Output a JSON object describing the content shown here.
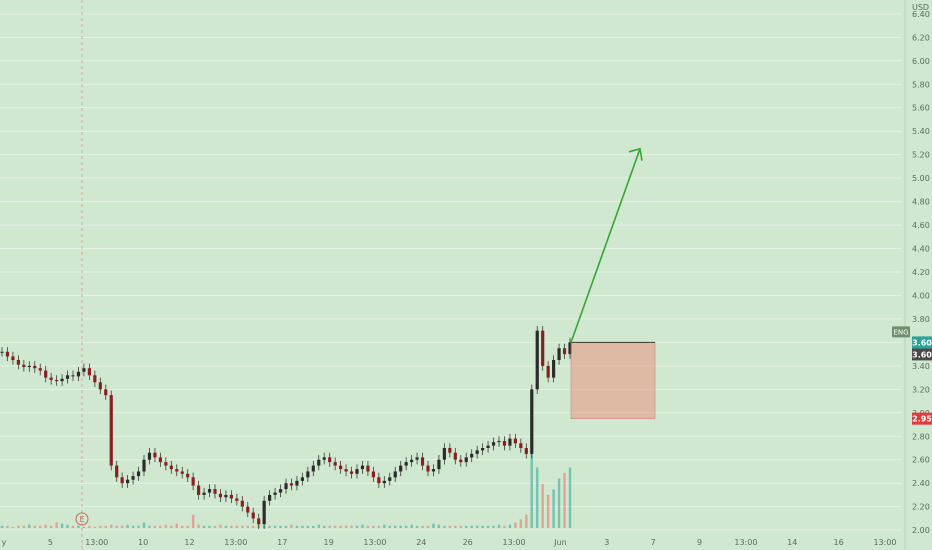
{
  "chart_data": {
    "type": "candlestick",
    "currency": "USD",
    "symbol_badge": "ENG",
    "y_range": [
      1.95,
      6.45
    ],
    "y_ticks": [
      "6.40",
      "6.20",
      "6.00",
      "5.80",
      "5.60",
      "5.40",
      "5.20",
      "5.00",
      "4.80",
      "4.60",
      "4.40",
      "4.20",
      "4.00",
      "3.80",
      "3.60",
      "3.40",
      "3.20",
      "3.00",
      "2.80",
      "2.60",
      "2.40",
      "2.20",
      "2.00"
    ],
    "x_ticks": [
      "y",
      "5",
      "13:00",
      "10",
      "12",
      "13:00",
      "17",
      "19",
      "13:00",
      "24",
      "26",
      "13:00",
      "Jun",
      "3",
      "7",
      "9",
      "13:00",
      "14",
      "16",
      "13:00"
    ],
    "price_labels": [
      {
        "text": "3.60",
        "value": 3.6,
        "color": "#26a69a"
      },
      {
        "text": "3.60",
        "value": 3.6,
        "color": "#4a4a4a"
      },
      {
        "text": "2.95",
        "value": 2.95,
        "color": "#e5383b"
      }
    ],
    "event_marker": "E",
    "price_series": [
      3.52,
      3.48,
      3.45,
      3.41,
      3.39,
      3.4,
      3.38,
      3.36,
      3.3,
      3.28,
      3.27,
      3.29,
      3.32,
      3.31,
      3.35,
      3.38,
      3.32,
      3.26,
      3.2,
      3.15,
      2.55,
      2.45,
      2.4,
      2.43,
      2.46,
      2.5,
      2.6,
      2.66,
      2.62,
      2.58,
      2.55,
      2.52,
      2.5,
      2.48,
      2.45,
      2.38,
      2.3,
      2.32,
      2.35,
      2.31,
      2.28,
      2.3,
      2.27,
      2.25,
      2.2,
      2.15,
      2.1,
      2.05,
      2.25,
      2.3,
      2.32,
      2.35,
      2.4,
      2.38,
      2.42,
      2.45,
      2.5,
      2.55,
      2.6,
      2.62,
      2.58,
      2.55,
      2.52,
      2.5,
      2.48,
      2.52,
      2.55,
      2.5,
      2.45,
      2.4,
      2.42,
      2.45,
      2.5,
      2.55,
      2.58,
      2.6,
      2.62,
      2.55,
      2.5,
      2.52,
      2.6,
      2.7,
      2.66,
      2.6,
      2.58,
      2.62,
      2.65,
      2.68,
      2.7,
      2.72,
      2.75,
      2.76,
      2.72,
      2.78,
      2.74,
      2.7,
      2.65,
      3.2,
      3.7,
      3.4,
      3.3,
      3.45,
      3.55,
      3.5,
      3.6
    ],
    "volume_series": [
      0.02,
      0.02,
      0.01,
      0.02,
      0.02,
      0.03,
      0.02,
      0.02,
      0.03,
      0.02,
      0.05,
      0.04,
      0.03,
      0.02,
      0.02,
      0.01,
      0.02,
      0.01,
      0.02,
      0.02,
      0.03,
      0.02,
      0.02,
      0.03,
      0.02,
      0.02,
      0.05,
      0.02,
      0.02,
      0.02,
      0.03,
      0.02,
      0.04,
      0.02,
      0.02,
      0.12,
      0.03,
      0.02,
      0.02,
      0.02,
      0.03,
      0.02,
      0.02,
      0.02,
      0.02,
      0.02,
      0.02,
      0.03,
      0.02,
      0.02,
      0.02,
      0.02,
      0.02,
      0.03,
      0.02,
      0.02,
      0.02,
      0.02,
      0.03,
      0.02,
      0.02,
      0.02,
      0.02,
      0.02,
      0.02,
      0.02,
      0.03,
      0.02,
      0.02,
      0.02,
      0.03,
      0.02,
      0.02,
      0.02,
      0.02,
      0.03,
      0.02,
      0.02,
      0.02,
      0.04,
      0.03,
      0.02,
      0.02,
      0.02,
      0.02,
      0.02,
      0.02,
      0.02,
      0.02,
      0.02,
      0.02,
      0.03,
      0.02,
      0.03,
      0.05,
      0.08,
      0.12,
      0.9,
      0.55,
      0.4,
      0.3,
      0.35,
      0.45,
      0.5,
      0.55
    ],
    "projection_arrow": {
      "from_value": 3.6,
      "to_value": 5.25
    },
    "stop_box": {
      "top_value": 3.6,
      "bottom_value": 2.95
    }
  }
}
